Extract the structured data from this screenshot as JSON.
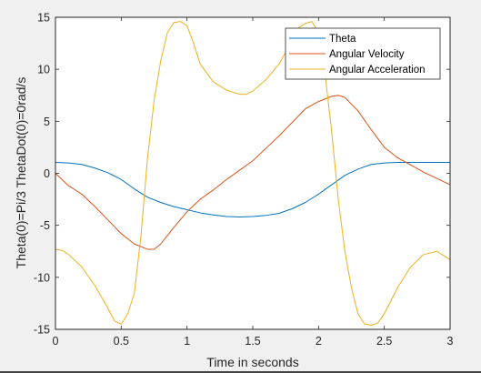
{
  "chart_data": {
    "type": "line",
    "title": "",
    "xlabel": "Time in seconds",
    "ylabel": "Theta(0)=Pi/3 ThetaDot(0)=0rad/s",
    "xlim": [
      0,
      3
    ],
    "ylim": [
      -15,
      15
    ],
    "xticks": [
      "0",
      "0.5",
      "1",
      "1.5",
      "2",
      "2.5",
      "3"
    ],
    "yticks": [
      "15",
      "10",
      "5",
      "0",
      "-5",
      "-10",
      "-15"
    ],
    "xtick_values": [
      0,
      0.5,
      1,
      1.5,
      2,
      2.5,
      3
    ],
    "ytick_values": [
      15,
      10,
      5,
      0,
      -5,
      -10,
      -15
    ],
    "grid": false,
    "legend_position": "top-right",
    "series": [
      {
        "name": "Theta",
        "color": "#0072BD",
        "x": [
          0,
          0.1,
          0.2,
          0.3,
          0.4,
          0.5,
          0.6,
          0.7,
          0.8,
          0.9,
          1.0,
          1.1,
          1.2,
          1.3,
          1.4,
          1.5,
          1.6,
          1.7,
          1.8,
          1.9,
          2.0,
          2.1,
          2.2,
          2.3,
          2.4,
          2.5,
          2.6,
          2.7,
          2.8,
          2.9,
          3.0
        ],
        "y": [
          1.05,
          1.0,
          0.85,
          0.5,
          0.05,
          -0.6,
          -1.5,
          -2.3,
          -2.8,
          -3.2,
          -3.5,
          -3.8,
          -4.0,
          -4.15,
          -4.2,
          -4.15,
          -4.05,
          -3.85,
          -3.4,
          -2.8,
          -2.0,
          -1.1,
          -0.2,
          0.4,
          0.85,
          1.0,
          1.05,
          1.05,
          1.05,
          1.05,
          1.05
        ]
      },
      {
        "name": "Angular Velocity",
        "color": "#D95319",
        "x": [
          0,
          0.1,
          0.2,
          0.3,
          0.4,
          0.5,
          0.6,
          0.7,
          0.75,
          0.8,
          0.9,
          1.0,
          1.1,
          1.2,
          1.3,
          1.4,
          1.5,
          1.6,
          1.7,
          1.8,
          1.9,
          2.0,
          2.1,
          2.15,
          2.2,
          2.3,
          2.4,
          2.5,
          2.6,
          2.7,
          2.8,
          2.9,
          3.0
        ],
        "y": [
          0,
          -1.2,
          -2.0,
          -3.2,
          -4.5,
          -5.8,
          -6.8,
          -7.3,
          -7.3,
          -6.8,
          -5.2,
          -3.7,
          -2.5,
          -1.6,
          -0.6,
          0.3,
          1.2,
          2.4,
          3.6,
          4.9,
          6.2,
          6.9,
          7.4,
          7.5,
          7.3,
          6.0,
          4.2,
          2.5,
          1.5,
          0.8,
          0.1,
          -0.5,
          -1.1
        ]
      },
      {
        "name": "Angular Acceleration",
        "color": "#EDB120",
        "x": [
          0,
          0.05,
          0.1,
          0.2,
          0.3,
          0.4,
          0.45,
          0.5,
          0.55,
          0.6,
          0.65,
          0.7,
          0.75,
          0.8,
          0.85,
          0.9,
          0.95,
          1.0,
          1.05,
          1.1,
          1.2,
          1.3,
          1.4,
          1.45,
          1.5,
          1.6,
          1.7,
          1.8,
          1.85,
          1.9,
          1.95,
          2.0,
          2.05,
          2.1,
          2.15,
          2.2,
          2.25,
          2.3,
          2.35,
          2.4,
          2.45,
          2.5,
          2.6,
          2.7,
          2.8,
          2.9,
          3.0
        ],
        "y": [
          -7.3,
          -7.4,
          -7.8,
          -9.0,
          -10.8,
          -13.0,
          -14.2,
          -14.5,
          -13.5,
          -11.5,
          -6.0,
          1.5,
          7.0,
          10.8,
          13.5,
          14.5,
          14.6,
          14.2,
          12.5,
          10.5,
          8.8,
          8.0,
          7.6,
          7.6,
          7.9,
          9.0,
          10.5,
          12.8,
          14.0,
          14.4,
          14.6,
          13.5,
          9.5,
          4.0,
          -2.5,
          -7.5,
          -11.0,
          -13.5,
          -14.5,
          -14.6,
          -14.4,
          -13.5,
          -11.0,
          -9.0,
          -7.8,
          -7.5,
          -8.3
        ]
      }
    ]
  }
}
